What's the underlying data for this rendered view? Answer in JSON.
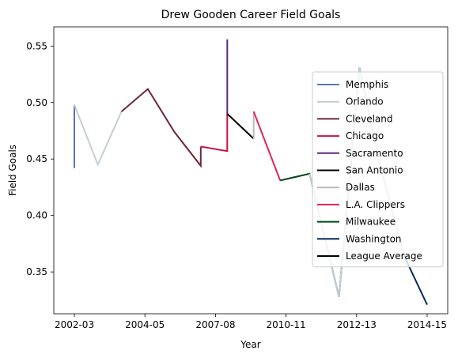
{
  "chart_data": {
    "type": "line",
    "title": "Drew Gooden Career Field Goals",
    "xlabel": "Year",
    "ylabel": "Field Goals",
    "x_tick_labels": [
      "2002-03",
      "2004-05",
      "2007-08",
      "2010-11",
      "2012-13",
      "2014-15"
    ],
    "y_tick_labels": [
      "0.35",
      "0.40",
      "0.45",
      "0.50",
      "0.55"
    ],
    "y_ticks": [
      0.35,
      0.4,
      0.45,
      0.5,
      0.55
    ],
    "ylim": [
      0.313,
      0.567
    ],
    "xlim": [
      -0.35,
      6.35
    ],
    "grid": false,
    "legend_position": "right",
    "series": [
      {
        "name": "Memphis",
        "color": "#5D76A9",
        "points": [
          [
            0.0,
            0.442
          ],
          [
            0.0,
            0.498
          ]
        ]
      },
      {
        "name": "Orlando",
        "color": "#C4CED4",
        "points": [
          [
            0.0,
            0.498
          ],
          [
            0.4,
            0.445
          ],
          [
            0.8,
            0.492
          ]
        ]
      },
      {
        "name": "Cleveland",
        "color": "#6F263D",
        "points": [
          [
            0.8,
            0.492
          ],
          [
            1.25,
            0.512
          ],
          [
            1.7,
            0.474
          ],
          [
            2.15,
            0.444
          ],
          [
            2.15,
            0.461
          ]
        ]
      },
      {
        "name": "Chicago",
        "color": "#CE1141",
        "points": [
          [
            2.15,
            0.461
          ],
          [
            2.6,
            0.457
          ],
          [
            2.6,
            0.49
          ]
        ]
      },
      {
        "name": "Sacramento",
        "color": "#5A2D81",
        "points": [
          [
            2.6,
            0.49
          ],
          [
            2.6,
            0.556
          ]
        ]
      },
      {
        "name": "San Antonio",
        "color": "#000000",
        "points": [
          [
            2.6,
            0.49
          ],
          [
            3.05,
            0.468
          ]
        ]
      },
      {
        "name": "Dallas",
        "color": "#BBBBBB",
        "points": [
          [
            3.05,
            0.468
          ],
          [
            3.05,
            0.492
          ]
        ]
      },
      {
        "name": "L.A. Clippers",
        "color": "#E0245A",
        "points": [
          [
            3.05,
            0.492
          ],
          [
            3.5,
            0.431
          ]
        ]
      },
      {
        "name": "Milwaukee",
        "color": "#00471B",
        "points": [
          [
            3.5,
            0.431
          ],
          [
            4.0,
            0.437
          ],
          [
            4.5,
            0.328
          ],
          [
            4.85,
            0.531
          ]
        ]
      },
      {
        "name": "Washington",
        "color": "#002B5C",
        "points": [
          [
            4.85,
            0.531
          ],
          [
            5.2,
            0.445
          ],
          [
            5.6,
            0.365
          ],
          [
            6.0,
            0.321
          ]
        ]
      },
      {
        "name": "League Average",
        "color": "#000000",
        "points": []
      }
    ],
    "overlay": {
      "name": "Orlando",
      "color": "#C4CED4",
      "points": [
        [
          4.0,
          0.437
        ],
        [
          4.5,
          0.328
        ],
        [
          4.85,
          0.531
        ],
        [
          5.2,
          0.445
        ],
        [
          5.6,
          0.365
        ]
      ]
    }
  }
}
